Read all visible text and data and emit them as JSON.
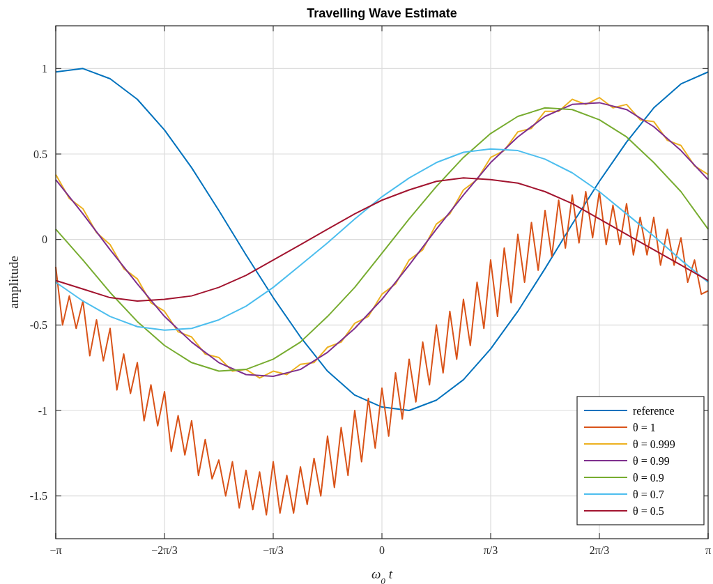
{
  "chart_data": {
    "type": "line",
    "title": "Travelling Wave Estimate",
    "xlabel": "ω$_{0}$t",
    "ylabel": "amplitude",
    "x": [
      -3.1416,
      -2.88,
      -2.618,
      -2.356,
      -2.094,
      -1.833,
      -1.571,
      -1.309,
      -1.047,
      -0.785,
      -0.524,
      -0.262,
      0,
      0.262,
      0.524,
      0.785,
      1.047,
      1.309,
      1.571,
      1.833,
      2.094,
      2.356,
      2.618,
      2.88,
      3.1416
    ],
    "series": [
      {
        "name": "reference",
        "color": "#0072bd",
        "values": [
          0.98,
          1.0,
          0.94,
          0.82,
          0.64,
          0.42,
          0.17,
          -0.09,
          -0.34,
          -0.57,
          -0.77,
          -0.91,
          -0.98,
          -1.0,
          -0.94,
          -0.82,
          -0.64,
          -0.42,
          -0.17,
          0.09,
          0.34,
          0.57,
          0.77,
          0.91,
          0.98
        ]
      },
      {
        "name": "θ = 1",
        "color": "#d95319",
        "x": [
          -3.1416,
          -3.076,
          -3.011,
          -2.945,
          -2.88,
          -2.814,
          -2.749,
          -2.683,
          -2.618,
          -2.553,
          -2.487,
          -2.422,
          -2.356,
          -2.291,
          -2.225,
          -2.16,
          -2.094,
          -2.029,
          -1.963,
          -1.898,
          -1.833,
          -1.767,
          -1.702,
          -1.636,
          -1.571,
          -1.505,
          -1.44,
          -1.374,
          -1.309,
          -1.244,
          -1.178,
          -1.113,
          -1.047,
          -0.982,
          -0.916,
          -0.851,
          -0.785,
          -0.72,
          -0.654,
          -0.589,
          -0.524,
          -0.458,
          -0.393,
          -0.327,
          -0.262,
          -0.196,
          -0.131,
          -0.065,
          0,
          0.065,
          0.131,
          0.196,
          0.262,
          0.327,
          0.393,
          0.458,
          0.524,
          0.589,
          0.654,
          0.72,
          0.785,
          0.851,
          0.916,
          0.982,
          1.047,
          1.113,
          1.178,
          1.244,
          1.309,
          1.374,
          1.44,
          1.505,
          1.571,
          1.636,
          1.702,
          1.767,
          1.833,
          1.898,
          1.963,
          2.029,
          2.094,
          2.16,
          2.225,
          2.291,
          2.356,
          2.422,
          2.487,
          2.553,
          2.618,
          2.683,
          2.749,
          2.814,
          2.88,
          2.945,
          3.011,
          3.076,
          3.1416
        ],
        "values": [
          -0.16,
          -0.5,
          -0.33,
          -0.52,
          -0.36,
          -0.68,
          -0.47,
          -0.71,
          -0.52,
          -0.88,
          -0.67,
          -0.9,
          -0.72,
          -1.06,
          -0.85,
          -1.09,
          -0.89,
          -1.24,
          -1.03,
          -1.26,
          -1.06,
          -1.38,
          -1.17,
          -1.4,
          -1.29,
          -1.5,
          -1.3,
          -1.57,
          -1.35,
          -1.58,
          -1.36,
          -1.61,
          -1.3,
          -1.6,
          -1.38,
          -1.6,
          -1.33,
          -1.55,
          -1.28,
          -1.5,
          -1.15,
          -1.45,
          -1.1,
          -1.38,
          -1.0,
          -1.3,
          -0.93,
          -1.22,
          -0.87,
          -1.15,
          -0.78,
          -1.05,
          -0.7,
          -0.95,
          -0.6,
          -0.85,
          -0.5,
          -0.78,
          -0.42,
          -0.7,
          -0.35,
          -0.62,
          -0.25,
          -0.52,
          -0.12,
          -0.45,
          -0.05,
          -0.37,
          0.03,
          -0.25,
          0.1,
          -0.18,
          0.17,
          -0.1,
          0.23,
          -0.05,
          0.26,
          -0.02,
          0.28,
          0.01,
          0.28,
          -0.03,
          0.2,
          -0.03,
          0.21,
          -0.09,
          0.13,
          -0.09,
          0.13,
          -0.15,
          0.06,
          -0.15,
          0.01,
          -0.25,
          -0.12,
          -0.32,
          -0.3
        ]
      },
      {
        "name": "θ = 0.999",
        "color": "#edb120",
        "x": [
          -3.1416,
          -3.011,
          -2.88,
          -2.749,
          -2.618,
          -2.487,
          -2.356,
          -2.225,
          -2.094,
          -1.963,
          -1.833,
          -1.702,
          -1.571,
          -1.44,
          -1.309,
          -1.178,
          -1.047,
          -0.916,
          -0.785,
          -0.654,
          -0.524,
          -0.393,
          -0.262,
          -0.131,
          0,
          0.131,
          0.262,
          0.393,
          0.524,
          0.654,
          0.785,
          0.916,
          1.047,
          1.178,
          1.309,
          1.44,
          1.571,
          1.702,
          1.833,
          1.963,
          2.094,
          2.225,
          2.356,
          2.487,
          2.618,
          2.749,
          2.88,
          3.011,
          3.1416
        ],
        "values": [
          0.38,
          0.24,
          0.18,
          0.04,
          -0.03,
          -0.17,
          -0.23,
          -0.37,
          -0.42,
          -0.54,
          -0.57,
          -0.67,
          -0.69,
          -0.77,
          -0.76,
          -0.81,
          -0.77,
          -0.79,
          -0.73,
          -0.72,
          -0.63,
          -0.6,
          -0.49,
          -0.45,
          -0.32,
          -0.26,
          -0.12,
          -0.06,
          0.09,
          0.15,
          0.29,
          0.35,
          0.48,
          0.52,
          0.63,
          0.65,
          0.75,
          0.75,
          0.82,
          0.79,
          0.83,
          0.77,
          0.79,
          0.7,
          0.69,
          0.58,
          0.55,
          0.43,
          0.38
        ]
      },
      {
        "name": "θ = 0.99",
        "color": "#7e2f8e",
        "values": [
          0.35,
          0.15,
          -0.06,
          -0.26,
          -0.45,
          -0.6,
          -0.72,
          -0.79,
          -0.8,
          -0.76,
          -0.66,
          -0.52,
          -0.35,
          -0.15,
          0.06,
          0.26,
          0.45,
          0.6,
          0.72,
          0.79,
          0.8,
          0.76,
          0.66,
          0.52,
          0.35
        ]
      },
      {
        "name": "θ = 0.9",
        "color": "#77ac30",
        "values": [
          0.06,
          -0.12,
          -0.31,
          -0.48,
          -0.62,
          -0.72,
          -0.77,
          -0.76,
          -0.7,
          -0.6,
          -0.45,
          -0.28,
          -0.08,
          0.12,
          0.31,
          0.48,
          0.62,
          0.72,
          0.77,
          0.76,
          0.7,
          0.6,
          0.45,
          0.28,
          0.06
        ]
      },
      {
        "name": "θ = 0.7",
        "color": "#4dbeee",
        "values": [
          -0.25,
          -0.36,
          -0.45,
          -0.51,
          -0.53,
          -0.52,
          -0.47,
          -0.39,
          -0.28,
          -0.15,
          -0.02,
          0.12,
          0.25,
          0.36,
          0.45,
          0.51,
          0.53,
          0.52,
          0.47,
          0.39,
          0.28,
          0.15,
          0.02,
          -0.12,
          -0.25
        ]
      },
      {
        "name": "θ = 0.5",
        "color": "#a2142f",
        "values": [
          -0.24,
          -0.29,
          -0.34,
          -0.36,
          -0.35,
          -0.33,
          -0.28,
          -0.21,
          -0.12,
          -0.03,
          0.06,
          0.15,
          0.23,
          0.29,
          0.34,
          0.36,
          0.35,
          0.33,
          0.28,
          0.21,
          0.12,
          0.03,
          -0.06,
          -0.15,
          -0.24
        ]
      }
    ],
    "xlim": [
      -3.1416,
      3.1416
    ],
    "xticks": [
      {
        "value": -3.1416,
        "label": "−π"
      },
      {
        "value": -2.0944,
        "label": "−2π/3"
      },
      {
        "value": -1.0472,
        "label": "−π/3"
      },
      0,
      {
        "value": 1.0472,
        "label": "π/3"
      },
      {
        "value": 2.0944,
        "label": "2π/3"
      },
      {
        "value": 3.1416,
        "label": "π"
      }
    ],
    "ylim": [
      -1.75,
      1.25
    ],
    "yticks": [
      -1.5,
      -1,
      -0.5,
      0,
      0.5,
      1
    ],
    "grid": true,
    "legend": "bottom right",
    "line_style": "solid",
    "marker": "none"
  }
}
